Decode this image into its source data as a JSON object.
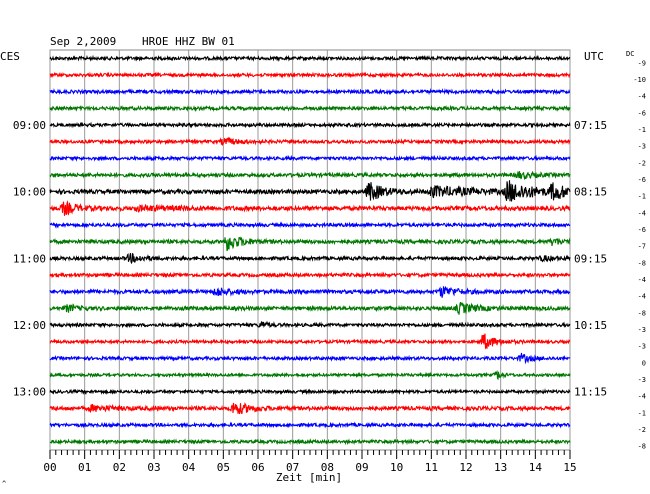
{
  "header": {
    "date": "Sep 2,2009",
    "station": "HROE HHZ BW 01",
    "left_tz": "CES",
    "right_tz": "UTC",
    "dc_label": "DC"
  },
  "chart_data": {
    "type": "line",
    "title": "Sep 2,2009  HROE HHZ BW 01",
    "xlabel": "Zeit [min]",
    "xlim": [
      0,
      15
    ],
    "x_ticks": [
      "00",
      "01",
      "02",
      "03",
      "04",
      "05",
      "06",
      "07",
      "08",
      "09",
      "10",
      "11",
      "12",
      "13",
      "14",
      "15"
    ],
    "trace_colors": [
      "#000000",
      "#ff0000",
      "#0000ff",
      "#007700"
    ],
    "grid": true,
    "left_time_labels": [
      {
        "row": 4,
        "text": "09:00"
      },
      {
        "row": 8,
        "text": "10:00"
      },
      {
        "row": 12,
        "text": "11:00"
      },
      {
        "row": 16,
        "text": "12:00"
      },
      {
        "row": 20,
        "text": "13:00"
      }
    ],
    "right_time_labels": [
      {
        "row": 4,
        "text": "07:15"
      },
      {
        "row": 8,
        "text": "08:15"
      },
      {
        "row": 12,
        "text": "09:15"
      },
      {
        "row": 16,
        "text": "10:15"
      },
      {
        "row": 20,
        "text": "11:15"
      }
    ],
    "dc_offsets": [
      "-9",
      "-10",
      "-4",
      "-6",
      "-1",
      "-3",
      "-2",
      "-6",
      "-1",
      "-4",
      "-6",
      "-7",
      "-8",
      "-4",
      "-4",
      "-8",
      "-3",
      "-3",
      "0",
      "-3",
      "-4",
      "-1",
      "-2",
      "-8"
    ],
    "traces": [
      {
        "amplitude": 1.5,
        "events": []
      },
      {
        "amplitude": 1.5,
        "events": []
      },
      {
        "amplitude": 1.6,
        "events": []
      },
      {
        "amplitude": 1.6,
        "events": []
      },
      {
        "amplitude": 1.5,
        "events": []
      },
      {
        "amplitude": 1.5,
        "events": [
          {
            "t": 5.0,
            "amp": 3,
            "dur": 1.0
          }
        ]
      },
      {
        "amplitude": 1.5,
        "events": []
      },
      {
        "amplitude": 1.7,
        "events": [
          {
            "t": 13.5,
            "amp": 3,
            "dur": 1.0
          }
        ]
      },
      {
        "amplitude": 2.0,
        "events": [
          {
            "t": 9.2,
            "amp": 9,
            "dur": 0.9
          },
          {
            "t": 11.0,
            "amp": 5,
            "dur": 2.5
          },
          {
            "t": 13.2,
            "amp": 10,
            "dur": 1.5
          },
          {
            "t": 14.5,
            "amp": 7,
            "dur": 1.0
          }
        ]
      },
      {
        "amplitude": 2.0,
        "events": [
          {
            "t": 0.4,
            "amp": 6,
            "dur": 0.8
          },
          {
            "t": 2.5,
            "amp": 2,
            "dur": 3.0
          }
        ]
      },
      {
        "amplitude": 1.6,
        "events": []
      },
      {
        "amplitude": 1.8,
        "events": [
          {
            "t": 5.1,
            "amp": 8,
            "dur": 0.9
          },
          {
            "t": 14.5,
            "amp": 3,
            "dur": 0.8
          }
        ]
      },
      {
        "amplitude": 1.6,
        "events": [
          {
            "t": 2.3,
            "amp": 4,
            "dur": 0.8
          },
          {
            "t": 14.2,
            "amp": 2,
            "dur": 1.0
          }
        ]
      },
      {
        "amplitude": 1.6,
        "events": []
      },
      {
        "amplitude": 1.8,
        "events": [
          {
            "t": 4.8,
            "amp": 4,
            "dur": 0.8
          },
          {
            "t": 11.3,
            "amp": 5,
            "dur": 0.9
          }
        ]
      },
      {
        "amplitude": 1.8,
        "events": [
          {
            "t": 0.5,
            "amp": 3,
            "dur": 0.6
          },
          {
            "t": 11.8,
            "amp": 5,
            "dur": 1.0
          }
        ]
      },
      {
        "amplitude": 1.5,
        "events": [
          {
            "t": 6.1,
            "amp": 3,
            "dur": 0.4
          }
        ]
      },
      {
        "amplitude": 1.4,
        "events": [
          {
            "t": 12.5,
            "amp": 8,
            "dur": 0.7
          }
        ]
      },
      {
        "amplitude": 1.5,
        "events": [
          {
            "t": 13.6,
            "amp": 4,
            "dur": 0.6
          }
        ]
      },
      {
        "amplitude": 1.3,
        "events": [
          {
            "t": 12.9,
            "amp": 4,
            "dur": 0.3
          }
        ]
      },
      {
        "amplitude": 1.4,
        "events": []
      },
      {
        "amplitude": 1.8,
        "events": [
          {
            "t": 1.2,
            "amp": 2.5,
            "dur": 1.5
          },
          {
            "t": 5.3,
            "amp": 6,
            "dur": 1.0
          }
        ]
      },
      {
        "amplitude": 1.5,
        "events": []
      },
      {
        "amplitude": 1.5,
        "events": []
      }
    ]
  }
}
